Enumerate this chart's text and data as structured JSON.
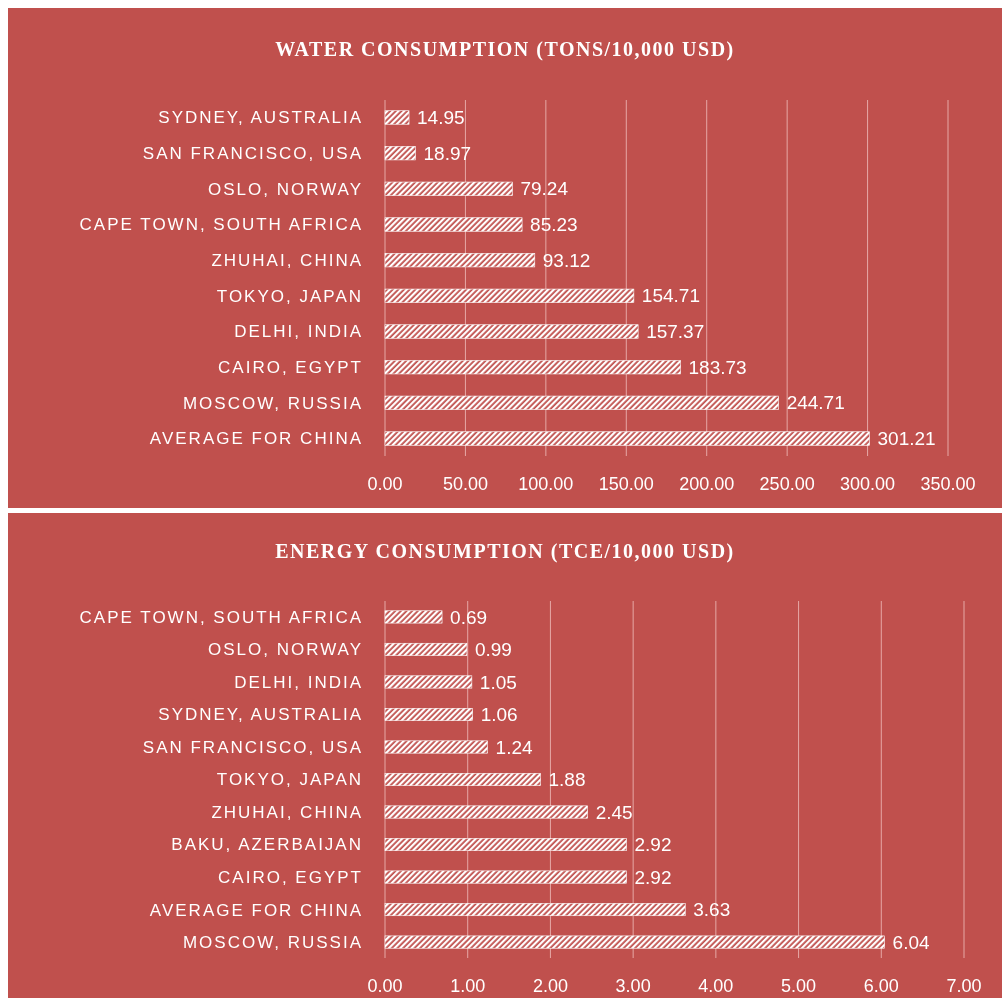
{
  "chart_data": [
    {
      "type": "bar",
      "orientation": "horizontal",
      "title": "WATER CONSUMPTION (TONS/10,000 USD)",
      "categories": [
        "SYDNEY, AUSTRALIA",
        "SAN FRANCISCO, USA",
        "OSLO, NORWAY",
        "CAPE TOWN, SOUTH AFRICA",
        "ZHUHAI, CHINA",
        "TOKYO, JAPAN",
        "DELHI, INDIA",
        "CAIRO, EGYPT",
        "MOSCOW, RUSSIA",
        "AVERAGE FOR CHINA"
      ],
      "values": [
        14.95,
        18.97,
        79.24,
        85.23,
        93.12,
        154.71,
        157.37,
        183.73,
        244.71,
        301.21
      ],
      "color": "#ffffff",
      "data_labels": true,
      "grid": "x",
      "xlim": [
        0,
        350
      ],
      "xticks": [
        {
          "value": 0,
          "label": "0.00"
        },
        {
          "value": 50,
          "label": "50.00"
        },
        {
          "value": 100,
          "label": "100.00"
        },
        {
          "value": 150,
          "label": "150.00"
        },
        {
          "value": 200,
          "label": "200.00"
        },
        {
          "value": 250,
          "label": "250.00"
        },
        {
          "value": 300,
          "label": "300.00"
        },
        {
          "value": 350,
          "label": "350.00"
        }
      ]
    },
    {
      "type": "bar",
      "orientation": "horizontal",
      "title": "ENERGY CONSUMPTION (TCE/10,000 USD)",
      "categories": [
        "CAPE TOWN, SOUTH AFRICA",
        "OSLO, NORWAY",
        "DELHI, INDIA",
        "SYDNEY, AUSTRALIA",
        "SAN FRANCISCO, USA",
        "TOKYO, JAPAN",
        "ZHUHAI, CHINA",
        "BAKU, AZERBAIJAN",
        "CAIRO, EGYPT",
        "AVERAGE FOR CHINA",
        "MOSCOW, RUSSIA"
      ],
      "values": [
        0.69,
        0.99,
        1.05,
        1.06,
        1.24,
        1.88,
        2.45,
        2.92,
        2.92,
        3.63,
        6.04
      ],
      "color": "#ffffff",
      "data_labels": true,
      "grid": "x",
      "xlim": [
        0,
        7
      ],
      "xticks": [
        {
          "value": 0,
          "label": "0.00"
        },
        {
          "value": 1,
          "label": "1.00"
        },
        {
          "value": 2,
          "label": "2.00"
        },
        {
          "value": 3,
          "label": "3.00"
        },
        {
          "value": 4,
          "label": "4.00"
        },
        {
          "value": 5,
          "label": "5.00"
        },
        {
          "value": 6,
          "label": "6.00"
        },
        {
          "value": 7,
          "label": "7.00"
        }
      ]
    }
  ]
}
